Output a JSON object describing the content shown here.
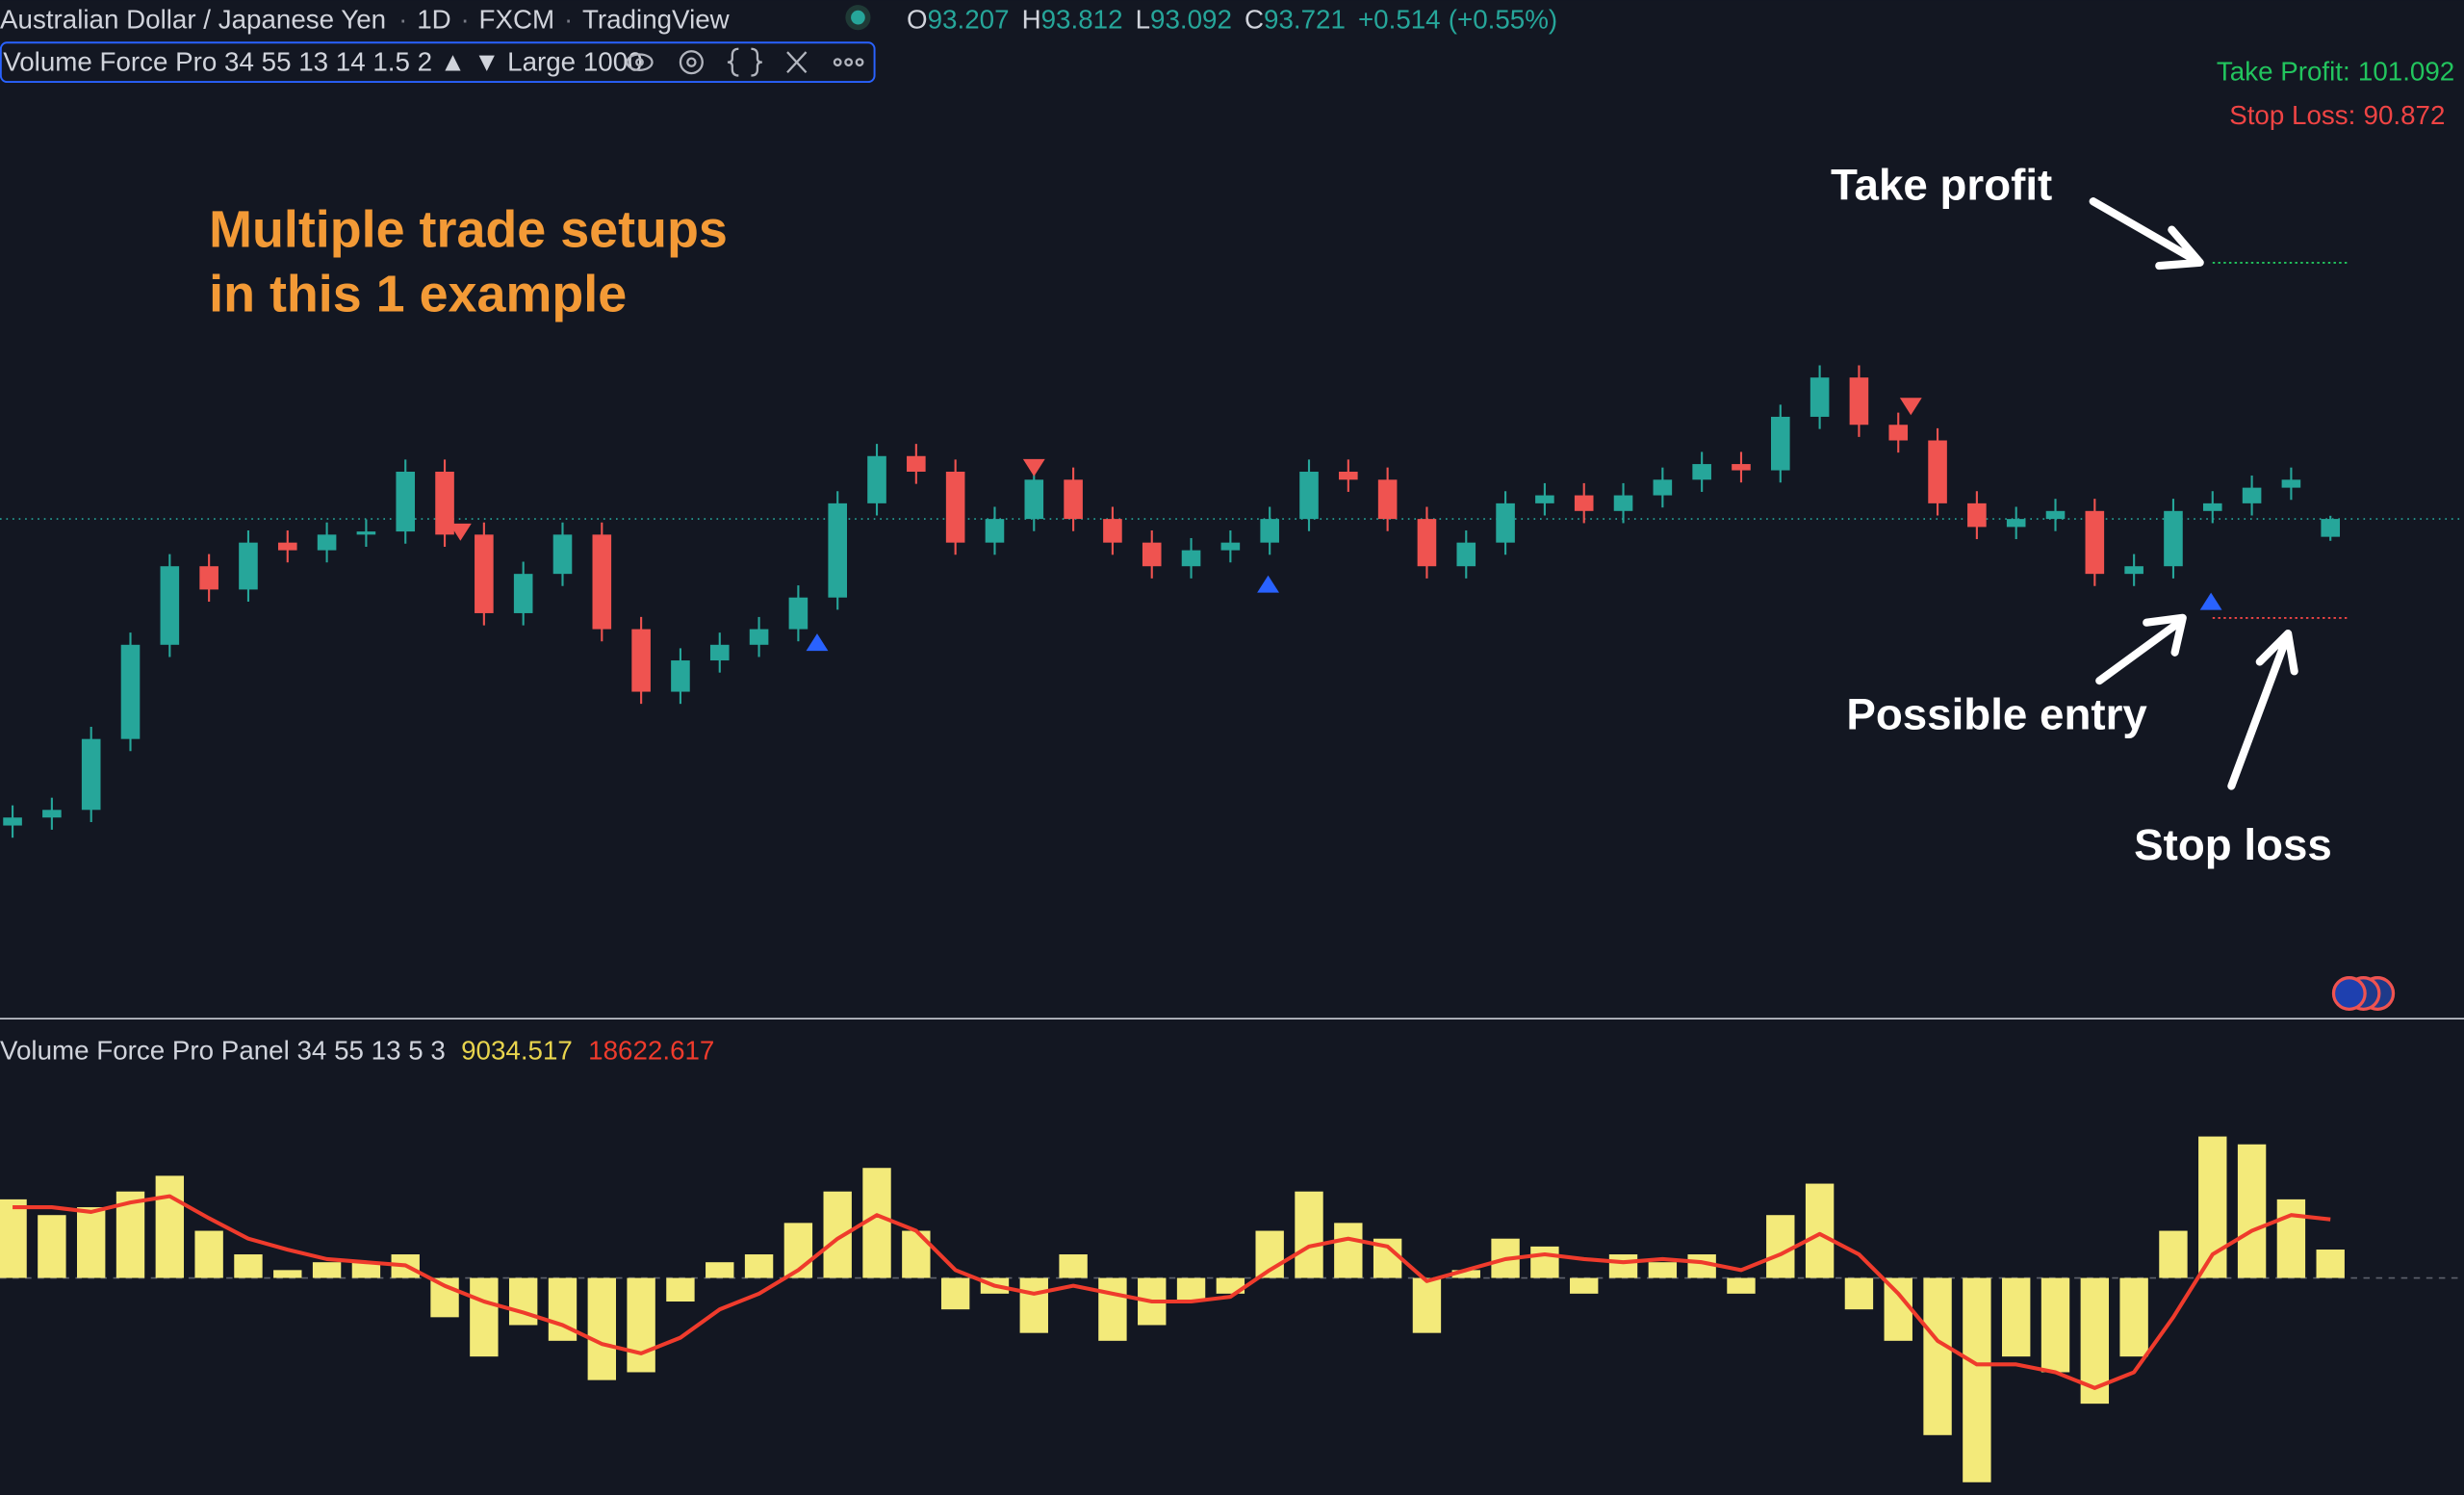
{
  "header": {
    "symbol": "Australian Dollar / Japanese Yen",
    "interval": "1D",
    "source": "FXCM",
    "platform": "TradingView",
    "ohlc_labels": [
      "O",
      "H",
      "L",
      "C"
    ],
    "change": "+0.514",
    "change_pct": "(+0.55%)",
    "indicator": "Volume Force Pro 34 55 13 14 1.5 2 ▲ ▼ Large 1000",
    "panel": "Volume Force Pro Panel 34 55 13 5 3"
  },
  "annotations": {
    "headline_1": "Multiple trade setups",
    "headline_2": "in this 1 example",
    "take_profit": "Take profit",
    "possible_entry": "Possible entry",
    "stop_loss": "Stop loss"
  },
  "chart_data": [
    {
      "type": "candlestick",
      "up_color": "#26a69a",
      "down_color": "#ef5350",
      "price_line_color": "#26a69a",
      "ylim": [
        79.48,
        106.16
      ],
      "open": [
        84.9,
        85.13,
        85.35,
        87.39,
        90.1,
        92.36,
        91.69,
        93.04,
        92.82,
        93.27,
        93.36,
        95.08,
        93.27,
        91.01,
        92.14,
        93.27,
        90.55,
        88.75,
        89.65,
        90.1,
        90.55,
        91.46,
        94.17,
        95.53,
        95.08,
        93.04,
        93.72,
        94.85,
        93.72,
        93.04,
        92.36,
        92.82,
        93.04,
        93.72,
        95.08,
        94.85,
        93.72,
        92.36,
        93.04,
        94.17,
        94.4,
        93.95,
        94.4,
        94.85,
        95.3,
        95.12,
        96.66,
        97.79,
        96.43,
        95.98,
        94.17,
        93.49,
        93.72,
        93.95,
        92.14,
        92.36,
        93.95,
        94.17,
        94.62,
        93.207
      ],
      "high": [
        85.48,
        85.7,
        87.74,
        90.45,
        92.71,
        92.71,
        93.39,
        93.39,
        93.62,
        93.71,
        95.43,
        95.43,
        93.62,
        92.49,
        93.62,
        93.62,
        90.9,
        90.0,
        90.45,
        90.9,
        91.81,
        94.52,
        95.88,
        95.88,
        95.43,
        94.07,
        95.2,
        95.2,
        94.07,
        93.39,
        93.17,
        93.39,
        94.07,
        95.43,
        95.43,
        95.2,
        94.07,
        93.39,
        94.52,
        94.75,
        94.75,
        94.75,
        95.2,
        95.65,
        95.65,
        97.01,
        98.14,
        98.14,
        96.78,
        96.33,
        94.52,
        94.07,
        94.3,
        94.3,
        92.71,
        94.3,
        94.52,
        94.97,
        95.2,
        93.812
      ],
      "low": [
        84.55,
        84.78,
        85.0,
        87.04,
        89.75,
        91.34,
        91.34,
        92.47,
        92.47,
        92.92,
        93.01,
        92.92,
        90.66,
        90.66,
        91.79,
        90.2,
        88.4,
        88.4,
        89.3,
        89.75,
        90.2,
        91.11,
        93.82,
        94.73,
        92.69,
        92.69,
        93.37,
        93.37,
        92.69,
        92.01,
        92.01,
        92.47,
        92.69,
        93.37,
        94.5,
        93.37,
        92.01,
        92.01,
        92.69,
        93.82,
        93.6,
        93.6,
        94.05,
        94.5,
        94.77,
        94.77,
        96.31,
        96.08,
        95.63,
        93.82,
        93.14,
        93.14,
        93.37,
        91.79,
        91.79,
        92.01,
        93.6,
        93.82,
        94.27,
        93.092
      ],
      "close": [
        85.13,
        85.35,
        87.39,
        90.1,
        92.36,
        91.69,
        93.04,
        92.82,
        93.27,
        93.36,
        95.08,
        93.27,
        91.01,
        92.14,
        93.27,
        90.55,
        88.75,
        89.65,
        90.1,
        90.55,
        91.46,
        94.17,
        95.53,
        95.08,
        93.04,
        93.72,
        94.85,
        93.72,
        93.04,
        92.36,
        92.82,
        93.04,
        93.72,
        95.08,
        94.85,
        93.72,
        92.36,
        93.04,
        94.17,
        94.4,
        93.95,
        94.4,
        94.85,
        95.3,
        95.12,
        96.66,
        97.79,
        96.43,
        95.98,
        94.17,
        93.49,
        93.72,
        93.95,
        92.14,
        92.36,
        93.95,
        94.17,
        94.62,
        94.85,
        93.721
      ],
      "levels": [
        {
          "label": "Take Profit:",
          "value": 101.092,
          "color": "#22c55e"
        },
        {
          "label": "Stop Loss:",
          "value": 90.872,
          "color": "#ef4444"
        }
      ]
    },
    {
      "type": "bar",
      "color": "#f3ea7a",
      "signal_color": "#ef3b2c",
      "value_color": "#e8d44d",
      "ylim": [
        -69000,
        64000
      ],
      "values": [
        25000,
        20000,
        22500,
        27500,
        32500,
        15000,
        7500,
        2500,
        5000,
        5000,
        7500,
        -12500,
        -25000,
        -15000,
        -20000,
        -32500,
        -30000,
        -7500,
        5000,
        7500,
        17500,
        27500,
        35000,
        15000,
        -10000,
        -5000,
        -17500,
        7500,
        -20000,
        -15000,
        -7500,
        -5000,
        15000,
        27500,
        17500,
        12500,
        -17500,
        2500,
        12500,
        10000,
        -5000,
        7500,
        5000,
        7500,
        -5000,
        20000,
        30000,
        -10000,
        -20000,
        -50000,
        -65000,
        -25000,
        -30000,
        -40000,
        -25000,
        15000,
        45000,
        42500,
        25000,
        9034.517
      ],
      "signal": [
        22500,
        22500,
        21000,
        24000,
        26000,
        19000,
        12500,
        9000,
        6000,
        5000,
        4000,
        -2500,
        -7500,
        -11000,
        -15000,
        -21000,
        -24000,
        -19000,
        -10000,
        -5000,
        2500,
        12500,
        20000,
        15000,
        2500,
        -2500,
        -5000,
        -2500,
        -5000,
        -7500,
        -7500,
        -6000,
        2500,
        10000,
        12500,
        10000,
        -1000,
        2500,
        6000,
        7500,
        6000,
        5000,
        6000,
        5000,
        2500,
        7500,
        14000,
        7500,
        -5000,
        -20000,
        -27500,
        -27500,
        -30000,
        -35000,
        -30000,
        -12500,
        7500,
        15000,
        20000,
        18622.617
      ]
    }
  ]
}
